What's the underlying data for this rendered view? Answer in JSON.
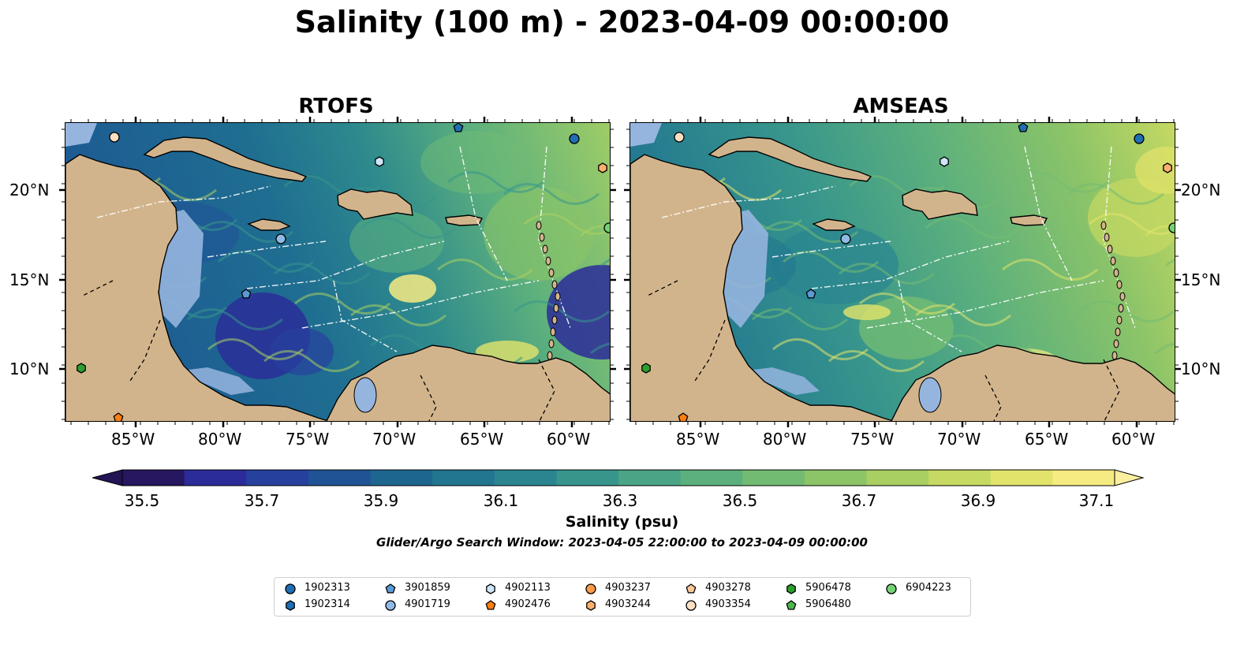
{
  "title": "Salinity (100 m) - 2023-04-09 00:00:00",
  "panels": [
    {
      "title": "RTOFS",
      "model": "rtofs"
    },
    {
      "title": "AMSEAS",
      "model": "amseas"
    }
  ],
  "lon_ticks": [
    "85°W",
    "80°W",
    "75°W",
    "70°W",
    "65°W",
    "60°W"
  ],
  "lat_ticks": [
    "20°N",
    "15°N",
    "10°N"
  ],
  "colorbar": {
    "label": "Salinity (psu)",
    "ticks": [
      "35.5",
      "35.7",
      "35.9",
      "36.1",
      "36.3",
      "36.5",
      "36.7",
      "36.9",
      "37.1"
    ],
    "min": 35.5,
    "max": 37.1,
    "step": 0.1,
    "extend": "both",
    "colors": [
      "#271660",
      "#2b2b99",
      "#26409e",
      "#1f5396",
      "#1d6690",
      "#227690",
      "#2a8590",
      "#37958c",
      "#4aa485",
      "#5cb07d",
      "#72bb73",
      "#8cc468",
      "#a9cf63",
      "#c6d962",
      "#e2e36a",
      "#f6ea82"
    ],
    "under_color": "#231455",
    "over_color": "#faeea0"
  },
  "search_window": "Glider/Argo Search Window: 2023-04-05 22:00:00 to 2023-04-09 00:00:00",
  "legend": [
    {
      "id": "1902313",
      "marker": "circle",
      "color": "#1f6fb5"
    },
    {
      "id": "1902314",
      "marker": "hexagon",
      "color": "#1f6fb5"
    },
    {
      "id": "3901859",
      "marker": "pentagon",
      "color": "#5b9bd5"
    },
    {
      "id": "4901719",
      "marker": "circle",
      "color": "#8fbbe6"
    },
    {
      "id": "4902113",
      "marker": "hexagon",
      "color": "#cfe5fa"
    },
    {
      "id": "4902476",
      "marker": "pentagon",
      "color": "#ff7f0e"
    },
    {
      "id": "4903237",
      "marker": "circle",
      "color": "#fd9a4a"
    },
    {
      "id": "4903244",
      "marker": "hexagon",
      "color": "#fdb06e"
    },
    {
      "id": "4903278",
      "marker": "pentagon",
      "color": "#fdc79a"
    },
    {
      "id": "4903354",
      "marker": "circle",
      "color": "#fde0c2"
    },
    {
      "id": "5906478",
      "marker": "hexagon",
      "color": "#2ca02c"
    },
    {
      "id": "5906480",
      "marker": "pentagon",
      "color": "#4cb84c"
    },
    {
      "id": "6904223",
      "marker": "circle",
      "color": "#74d274"
    }
  ]
}
